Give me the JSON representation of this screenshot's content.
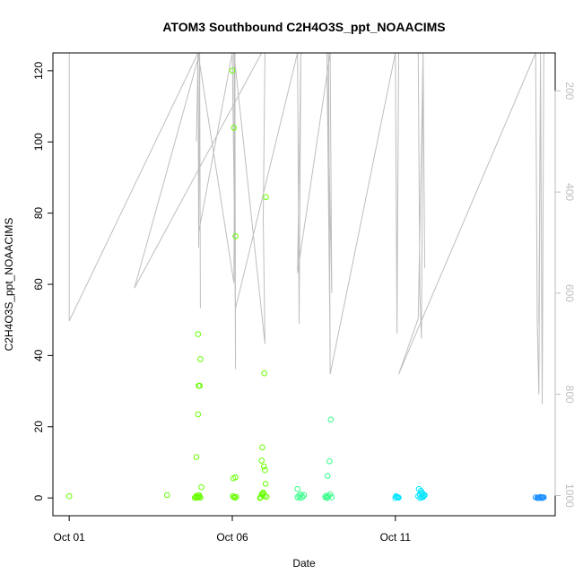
{
  "chart_data": {
    "type": "scatter",
    "title": "ATOM3 Southbound C2H4O3S_ppt_NOAACIMS",
    "xlabel": "Date",
    "ylabel": "C2H4O3S_ppt_NOAACIMS",
    "ylim": [
      -5,
      125
    ],
    "y_ticks": [
      0,
      20,
      40,
      60,
      80,
      100,
      120
    ],
    "x_ticks": [
      {
        "label": "Oct 01",
        "day": 1
      },
      {
        "label": "Oct 06",
        "day": 6
      },
      {
        "label": "Oct 11",
        "day": 11
      }
    ],
    "xlim_days": [
      0.5,
      15.9
    ],
    "right_axis": {
      "ticks": [
        200,
        400,
        600,
        800,
        1000
      ],
      "range_top_to_bottom": [
        125,
        1040
      ],
      "color": "#bebebe"
    },
    "grid": false,
    "legend": "none",
    "series": [
      {
        "kind": "points",
        "x_days": [
          1.0,
          4.0,
          4.85,
          4.88,
          4.9,
          4.92,
          4.95,
          4.98,
          5.0,
          5.02,
          4.9,
          4.95,
          5.0,
          4.97,
          5.02,
          4.95,
          5.05,
          6.0,
          6.05,
          6.1,
          6.05,
          6.02,
          6.08,
          6.03,
          6.1,
          6.12,
          6.85,
          6.9,
          6.95,
          7.0,
          6.88,
          6.93,
          6.98,
          7.03,
          6.9,
          6.92,
          6.97,
          7.0,
          7.02,
          7.05,
          6.95
        ],
        "y": [
          0.5,
          0.8,
          0.0,
          0.3,
          0.6,
          0.1,
          0.2,
          0.8,
          0.4,
          0.1,
          11.5,
          23.5,
          31.5,
          31.5,
          39.0,
          46.0,
          3.0,
          120.0,
          104.0,
          73.5,
          0.2,
          0.5,
          0.1,
          5.5,
          5.8,
          0.3,
          0.0,
          1.0,
          1.5,
          0.6,
          0.2,
          0.8,
          35.0,
          84.5,
          10.5,
          14.2,
          8.8,
          7.8,
          4.0,
          0.3,
          1.2
        ],
        "color": "#66ff00"
      },
      {
        "kind": "points",
        "x_days": [
          8.0,
          8.05,
          8.1,
          8.15,
          8.2,
          8.0,
          8.08,
          8.85,
          8.9,
          8.95,
          9.0,
          9.05,
          8.88,
          8.92,
          8.98,
          9.02,
          8.9
        ],
        "y": [
          0.2,
          0.6,
          1.0,
          0.3,
          0.8,
          2.5,
          0.0,
          0.3,
          0.1,
          0.5,
          1.0,
          0.2,
          0.6,
          6.2,
          10.3,
          22.0,
          0.0
        ],
        "color": "#33ff88"
      },
      {
        "kind": "points",
        "x_days": [
          11.0,
          11.05,
          11.1,
          11.02,
          11.08,
          11.7,
          11.75,
          11.8,
          11.85,
          11.9,
          11.72,
          11.78,
          11.82,
          11.88,
          11.76,
          11.84
        ],
        "y": [
          0.0,
          0.3,
          0.1,
          0.5,
          0.2,
          0.5,
          1.0,
          1.5,
          0.3,
          0.8,
          2.5,
          2.0,
          0.2,
          0.6,
          0.0,
          1.2
        ],
        "color": "#00e5ff"
      },
      {
        "kind": "points",
        "x_days": [
          15.3,
          15.35,
          15.4,
          15.45,
          15.5,
          15.55,
          15.38,
          15.42,
          15.48,
          15.52
        ],
        "y": [
          0.2,
          0.0,
          0.1,
          0.3,
          0.0,
          0.2,
          0.1,
          0.0,
          0.2,
          0.1
        ],
        "color": "#1e90ff"
      },
      {
        "kind": "line",
        "axis": "right",
        "color": "#bebebe",
        "x_days": [
          1.0,
          1.0,
          4.95,
          4.9,
          4.95,
          4.97,
          5.0,
          5.02,
          5.0,
          3.0,
          6.9,
          7.0,
          6.95,
          7.0,
          6.05,
          6.1,
          6.08,
          6.05,
          4.95,
          4.97,
          6.0,
          6.1,
          8.0,
          8.05,
          8.1,
          8.0,
          9.0,
          9.05,
          8.9,
          9.0,
          8.95,
          9.0,
          11.0,
          11.05,
          11.1,
          11.05,
          11.0,
          11.7,
          11.75,
          11.8,
          11.85,
          11.9,
          11.85,
          11.7,
          11.1,
          15.3,
          15.35,
          15.4,
          15.45,
          15.5,
          15.55,
          15.5,
          15.45,
          15.4
        ],
        "y": [
          125,
          655,
          125,
          300,
          125,
          510,
          125,
          630,
          125,
          590,
          125,
          125,
          450,
          700,
          125,
          750,
          125,
          580,
          125,
          480,
          125,
          630,
          125,
          660,
          125,
          560,
          125,
          600,
          125,
          720,
          125,
          760,
          125,
          680,
          125,
          640,
          125,
          125,
          600,
          690,
          125,
          550,
          125,
          650,
          760,
          125,
          660,
          800,
          125,
          820,
          125,
          800,
          125,
          660
        ]
      }
    ]
  }
}
